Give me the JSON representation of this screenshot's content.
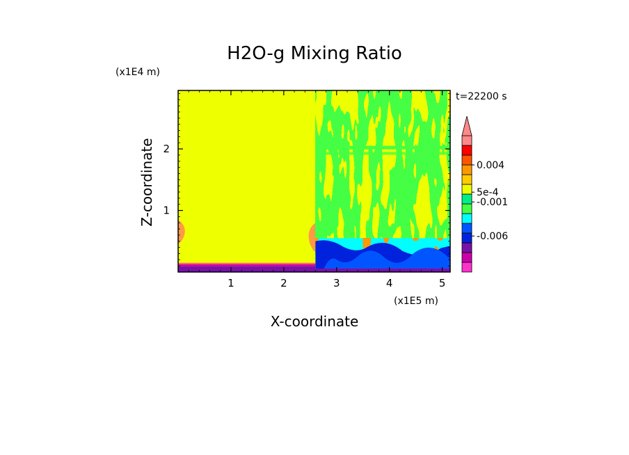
{
  "chart_data": {
    "type": "heatmap",
    "title": "H2O-g Mixing Ratio",
    "xlabel": "X-coordinate",
    "ylabel": "Z-coordinate",
    "x_unit": "(x1E5 m)",
    "y_unit": "(x1E4 m)",
    "time_label": "t=22200 s",
    "xlim": [
      0,
      5.15
    ],
    "ylim": [
      0,
      2.95
    ],
    "x_ticks": [
      1,
      2,
      3,
      4,
      5
    ],
    "y_ticks": [
      1,
      2
    ],
    "colorbar": {
      "labels": [
        {
          "text": "0.004",
          "value": 0.004
        },
        {
          "text": "5e-4",
          "value": 0.0005
        },
        {
          "text": "-0.001",
          "value": -0.001
        },
        {
          "text": "-0.006",
          "value": -0.006
        }
      ],
      "colors": [
        "#ff33cc",
        "#cc00aa",
        "#7711aa",
        "#0022dd",
        "#0055ff",
        "#00ffff",
        "#44ff44",
        "#00ee88",
        "#eeff00",
        "#ffcc00",
        "#ff9900",
        "#ff5500",
        "#ff0000",
        "#ff8888"
      ],
      "extend_top": true
    },
    "regions": {
      "background_color": "#eeff00",
      "boundary_x": 2.6,
      "left_band": {
        "z_top": 0.15,
        "colors": [
          "#7711aa",
          "#cc00aa",
          "#ff6666"
        ]
      }
    }
  }
}
